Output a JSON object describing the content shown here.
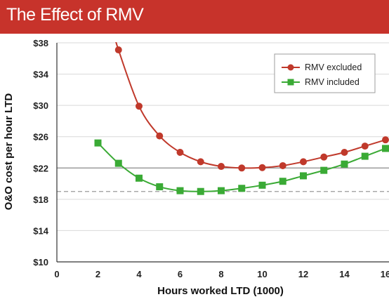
{
  "title": "The Effect of RMV",
  "colors": {
    "title_bg": "#c7332b",
    "series_excluded": "#c0392b",
    "series_included": "#3aaa35",
    "grid": "#d9d9d9",
    "ref_solid": "#8c8c8c",
    "ref_dashed": "#9a9a9a"
  },
  "chart_data": {
    "type": "line",
    "xlabel": "Hours worked LTD (1000)",
    "ylabel": "O&O cost per hour LTD",
    "xlim": [
      0,
      16
    ],
    "ylim": [
      10,
      38
    ],
    "x_ticks": [
      "0",
      "2",
      "4",
      "6",
      "8",
      "10",
      "12",
      "14",
      "16"
    ],
    "x_tick_values": [
      0,
      2,
      4,
      6,
      8,
      10,
      12,
      14,
      16
    ],
    "y_ticks": [
      "$10",
      "$14",
      "$18",
      "$22",
      "$26",
      "$30",
      "$34",
      "$38"
    ],
    "y_tick_values": [
      10,
      14,
      18,
      22,
      26,
      30,
      34,
      38
    ],
    "grid": "horizontal",
    "legend_position": "top-right",
    "reference_lines": [
      {
        "y": 22,
        "style": "solid"
      },
      {
        "y": 19,
        "style": "dashed"
      }
    ],
    "series": [
      {
        "name": "RMV excluded",
        "marker": "circle",
        "color": "#c0392b",
        "curve_start": [
          2.8,
          39
        ],
        "x": [
          3,
          4,
          5,
          6,
          7,
          8,
          9,
          10,
          11,
          12,
          13,
          14,
          15,
          16
        ],
        "y": [
          37.1,
          29.9,
          26.1,
          24.0,
          22.8,
          22.2,
          22.0,
          22.05,
          22.3,
          22.8,
          23.4,
          24.0,
          24.8,
          25.6
        ]
      },
      {
        "name": "RMV included",
        "marker": "square",
        "color": "#3aaa35",
        "x": [
          2,
          3,
          4,
          5,
          6,
          7,
          8,
          9,
          10,
          11,
          12,
          13,
          14,
          15,
          16
        ],
        "y": [
          25.2,
          22.6,
          20.7,
          19.6,
          19.1,
          19.0,
          19.1,
          19.4,
          19.8,
          20.3,
          21.0,
          21.7,
          22.5,
          23.5,
          24.5
        ]
      }
    ]
  }
}
